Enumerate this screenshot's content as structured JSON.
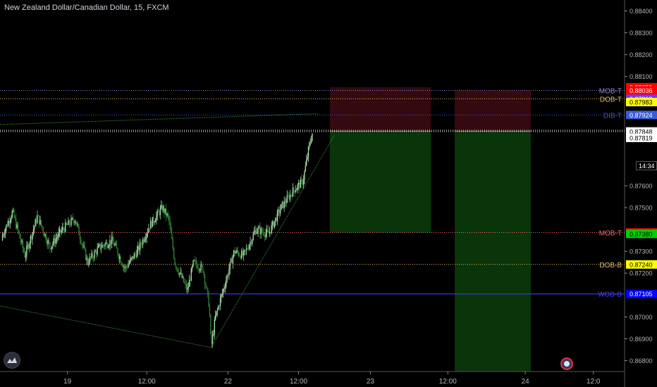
{
  "header": {
    "title": "New Zealand Dollar/Canadian Dollar, 15, FXCM"
  },
  "clock_label": "14:34",
  "colors": {
    "background": "#000000",
    "candle_up": "#a5d6a7",
    "candle_down": "#2e7d32",
    "stop_zone": "#3a0a12",
    "target_zone": "#0b3a0b",
    "mob_line": "#8f8fe0",
    "dob_line": "#e6c25a",
    "wob_line": "#4040ff",
    "dib_line": "#3b5bd6",
    "trendline": "#4caf50"
  },
  "icons": {
    "logo": "tradingview-logo-icon",
    "alert": "alert-badge-icon"
  },
  "chart_data": {
    "type": "candlestick",
    "symbol": "New Zealand Dollar/Canadian Dollar, 15, FXCM",
    "ylim": [
      0.8675,
      0.8845
    ],
    "y_ticks": [
      0.884,
      0.883,
      0.882,
      0.881,
      0.876,
      0.875,
      0.873,
      0.872,
      0.87,
      0.869,
      0.868
    ],
    "y_tick_labels": [
      "0.88400",
      "0.88300",
      "0.88200",
      "0.88100",
      "0.87600",
      "0.87500",
      "0.87300",
      "0.87200",
      "0.87000",
      "0.86900",
      "0.86800"
    ],
    "x_tick_labels": [
      {
        "label": "19",
        "t": 0.108
      },
      {
        "label": "12:00",
        "t": 0.235
      },
      {
        "label": "22",
        "t": 0.365
      },
      {
        "label": "12:00",
        "t": 0.478
      },
      {
        "label": "23",
        "t": 0.593
      },
      {
        "label": "12:00",
        "t": 0.717
      },
      {
        "label": "24",
        "t": 0.841
      },
      {
        "label": "12:0",
        "t": 0.95
      }
    ],
    "candles_close_path": [
      {
        "t": 0.0,
        "v": 0.8735
      },
      {
        "t": 0.02,
        "v": 0.8748
      },
      {
        "t": 0.04,
        "v": 0.8728
      },
      {
        "t": 0.06,
        "v": 0.8746
      },
      {
        "t": 0.08,
        "v": 0.8732
      },
      {
        "t": 0.1,
        "v": 0.874
      },
      {
        "t": 0.12,
        "v": 0.8745
      },
      {
        "t": 0.14,
        "v": 0.8725
      },
      {
        "t": 0.16,
        "v": 0.8732
      },
      {
        "t": 0.18,
        "v": 0.8735
      },
      {
        "t": 0.2,
        "v": 0.8722
      },
      {
        "t": 0.22,
        "v": 0.873
      },
      {
        "t": 0.24,
        "v": 0.8742
      },
      {
        "t": 0.26,
        "v": 0.875
      },
      {
        "t": 0.27,
        "v": 0.8745
      },
      {
        "t": 0.28,
        "v": 0.8725
      },
      {
        "t": 0.3,
        "v": 0.8712
      },
      {
        "t": 0.31,
        "v": 0.8725
      },
      {
        "t": 0.325,
        "v": 0.8722
      },
      {
        "t": 0.335,
        "v": 0.8705
      },
      {
        "t": 0.338,
        "v": 0.8686
      },
      {
        "t": 0.345,
        "v": 0.87
      },
      {
        "t": 0.36,
        "v": 0.8715
      },
      {
        "t": 0.375,
        "v": 0.873
      },
      {
        "t": 0.39,
        "v": 0.8728
      },
      {
        "t": 0.41,
        "v": 0.874
      },
      {
        "t": 0.43,
        "v": 0.8738
      },
      {
        "t": 0.45,
        "v": 0.875
      },
      {
        "t": 0.47,
        "v": 0.8758
      },
      {
        "t": 0.485,
        "v": 0.8762
      },
      {
        "t": 0.495,
        "v": 0.8778
      },
      {
        "t": 0.5,
        "v": 0.8784
      }
    ],
    "levels": [
      {
        "name": "MOB-T",
        "label": "MOB-T",
        "value": 0.88036,
        "style": "dotted",
        "color": "#8f8fe0"
      },
      {
        "name": "DOB-T",
        "label": "DOB-T",
        "value": 0.87998,
        "style": "dotted",
        "color": "#e6c25a"
      },
      {
        "name": "DIB-T",
        "label": "DIB-T",
        "value": 0.87924,
        "style": "dotted",
        "color": "#3b5bd6"
      },
      {
        "name": "MOB-T-low",
        "label": "MOB-T",
        "value": 0.87386,
        "style": "dotted",
        "color": "#ff6b6b"
      },
      {
        "name": "DOB-B",
        "label": "DOB-B",
        "value": 0.8724,
        "style": "dotted",
        "color": "#e6c25a"
      },
      {
        "name": "WOB-B",
        "label": "WOB-B",
        "value": 0.87105,
        "style": "solid",
        "color": "#4040ff"
      }
    ],
    "price_badges": [
      {
        "text": "0.88051",
        "value": 0.88051,
        "bg": "#ff0000",
        "fg": "#ffffff"
      },
      {
        "text": "0.88036",
        "value": 0.88036,
        "bg": "#ff0000",
        "fg": "#ffffff"
      },
      {
        "text": "0.87998",
        "value": 0.87998,
        "bg": "#6a3aff",
        "fg": "#ffffff"
      },
      {
        "text": "0.87983",
        "value": 0.87983,
        "bg": "#ffff00",
        "fg": "#000000"
      },
      {
        "text": "0.87924",
        "value": 0.87924,
        "bg": "#3b5bd6",
        "fg": "#ffffff"
      },
      {
        "text": "0.87854",
        "value": 0.87854,
        "bg": "#1b1b1b",
        "fg": "#ffffff"
      },
      {
        "text": "0.87848",
        "value": 0.87848,
        "bg": "#ffffff",
        "fg": "#000000"
      },
      {
        "text": "0.87819",
        "value": 0.87819,
        "bg": "#ffffff",
        "fg": "#000000"
      },
      {
        "text": "0.87386",
        "value": 0.87386,
        "bg": "#ff0000",
        "fg": "#ffffff"
      },
      {
        "text": "0.87380",
        "value": 0.8738,
        "bg": "#00d000",
        "fg": "#000000"
      },
      {
        "text": "0.87240",
        "value": 0.8724,
        "bg": "#ffff00",
        "fg": "#000000"
      },
      {
        "text": "0.87105",
        "value": 0.87105,
        "bg": "#0000ff",
        "fg": "#ffffff"
      }
    ],
    "positions": [
      {
        "t_start": 0.528,
        "t_end": 0.69,
        "entry": 0.8785,
        "stop": 0.88051,
        "target": 0.87386
      },
      {
        "t_start": 0.728,
        "t_end": 0.85,
        "entry": 0.8785,
        "stop": 0.88036,
        "target": 0.8675
      }
    ],
    "trendlines": [
      {
        "t1": 0.0,
        "v1": 0.8788,
        "t2": 0.51,
        "v2": 0.8793
      },
      {
        "t1": 0.0,
        "v1": 0.8705,
        "t2": 0.338,
        "v2": 0.8686
      },
      {
        "t1": 0.338,
        "v1": 0.8686,
        "t2": 0.535,
        "v2": 0.8783
      }
    ]
  }
}
